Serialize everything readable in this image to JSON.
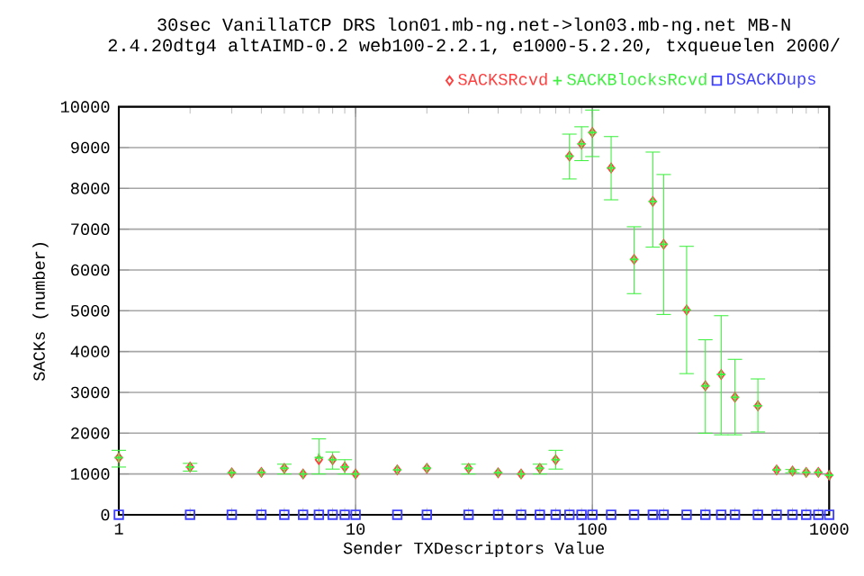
{
  "chart_data": {
    "type": "scatter",
    "title": "30sec VanillaTCP DRS lon01.mb-ng.net->lon03.mb-ng.net MB-N",
    "subtitle": "2.4.20dtg4 altAIMD-0.2 web100-2.2.1, e1000-5.2.20, txqueuelen 2000/",
    "xlabel": "Sender TXDescriptors Value",
    "ylabel": "SACKs (number)",
    "x": [
      1,
      2,
      3,
      4,
      5,
      6,
      7,
      8,
      9,
      10,
      15,
      20,
      30,
      40,
      50,
      60,
      70,
      80,
      90,
      100,
      120,
      150,
      180,
      200,
      250,
      300,
      350,
      400,
      500,
      600,
      700,
      800,
      900,
      1000
    ],
    "log": "x",
    "grid": true,
    "legend": "top right",
    "xlim": [
      1,
      1000
    ],
    "xticks": [
      1,
      10,
      100,
      1000
    ],
    "ylim": [
      0,
      10000
    ],
    "yticks": [
      0,
      1000,
      2000,
      3000,
      4000,
      5000,
      6000,
      7000,
      8000,
      9000,
      10000
    ],
    "series": [
      {
        "name": "SACKSRcvd",
        "color": "#ff4040",
        "marker": "diamond",
        "values": [
          1400,
          1170,
          1030,
          1040,
          1140,
          1000,
          1350,
          1350,
          1170,
          1000,
          1100,
          1140,
          1140,
          1030,
          1000,
          1140,
          1350,
          8790,
          9090,
          9370,
          8500,
          6260,
          7680,
          6630,
          5020,
          3160,
          3440,
          2880,
          2670,
          1100,
          1070,
          1040,
          1040,
          970
        ]
      },
      {
        "name": "SACKBlocksRcvd",
        "color": "#40f040",
        "marker": "cross",
        "values": [
          1400,
          1170,
          1030,
          1040,
          1140,
          1000,
          1400,
          1350,
          1170,
          1000,
          1100,
          1140,
          1140,
          1030,
          1000,
          1140,
          1350,
          8790,
          9090,
          9370,
          8500,
          6260,
          7680,
          6630,
          5020,
          3160,
          3440,
          2880,
          2670,
          1100,
          1070,
          1040,
          1040,
          970
        ],
        "errors": [
          [
            1170,
            1580
          ],
          [
            1070,
            1260
          ],
          null,
          null,
          [
            1000,
            1240
          ],
          null,
          [
            1000,
            1860
          ],
          [
            1120,
            1540
          ],
          [
            1000,
            1350
          ],
          null,
          null,
          null,
          [
            1000,
            1240
          ],
          null,
          null,
          [
            1000,
            1240
          ],
          [
            1120,
            1580
          ],
          [
            8230,
            9330
          ],
          [
            8680,
            9510
          ],
          [
            8780,
            9920
          ],
          [
            7720,
            9270
          ],
          [
            5420,
            7060
          ],
          [
            6560,
            8890
          ],
          [
            4910,
            8340
          ],
          [
            3460,
            6580
          ],
          [
            2000,
            4290
          ],
          [
            1960,
            4880
          ],
          [
            1960,
            3810
          ],
          [
            2030,
            3330
          ],
          null,
          [
            1030,
            1110
          ],
          null,
          null,
          null
        ]
      },
      {
        "name": "DSACKDups",
        "color": "#4040ff",
        "marker": "square",
        "values": [
          0,
          0,
          0,
          0,
          0,
          0,
          0,
          0,
          0,
          0,
          0,
          0,
          0,
          0,
          0,
          0,
          0,
          0,
          0,
          0,
          0,
          0,
          0,
          0,
          0,
          0,
          0,
          0,
          0,
          0,
          0,
          0,
          0,
          0
        ]
      }
    ]
  }
}
